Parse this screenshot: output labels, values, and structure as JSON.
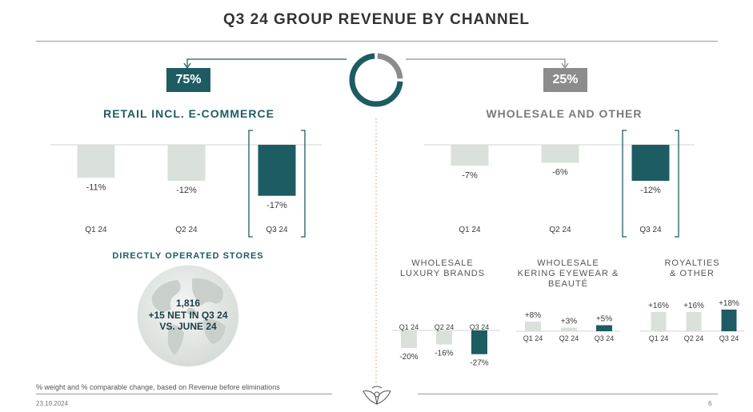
{
  "title": "Q3 24 GROUP REVENUE BY CHANNEL",
  "colors": {
    "teal": "#1d5c63",
    "grey": "#8c8c8c",
    "light": "#d9e1da",
    "text": "#3a3a3a"
  },
  "donut": {
    "retail_share": 75,
    "wholesale_share": 25
  },
  "retail": {
    "share_label": "75%",
    "heading": "RETAIL INCL. E-COMMERCE"
  },
  "wholesale": {
    "share_label": "25%",
    "heading": "WHOLESALE AND OTHER"
  },
  "stores": {
    "heading": "DIRECTLY OPERATED STORES",
    "count": "1,816",
    "line2": "+15 NET IN Q3 24",
    "line3": "VS. JUNE 24"
  },
  "footnote": "% weight and % comparable change, based on Revenue before eliminations",
  "date": "23.10.2024",
  "page_number": "6",
  "chart_data": [
    {
      "id": "retail",
      "type": "bar",
      "categories": [
        "Q1 24",
        "Q2 24",
        "Q3 24"
      ],
      "values": [
        -11,
        -12,
        -17
      ],
      "labels": [
        "-11%",
        "-12%",
        "-17%"
      ],
      "highlight": 2
    },
    {
      "id": "wholesale",
      "type": "bar",
      "categories": [
        "Q1 24",
        "Q2 24",
        "Q3 24"
      ],
      "values": [
        -7,
        -6,
        -12
      ],
      "labels": [
        "-7%",
        "-6%",
        "-12%"
      ],
      "highlight": 2
    },
    {
      "id": "lux",
      "type": "bar",
      "title": "WHOLESALE\nLUXURY BRANDS",
      "categories": [
        "Q1 24",
        "Q2 24",
        "Q3 24"
      ],
      "values": [
        -20,
        -16,
        -27
      ],
      "labels": [
        "-20%",
        "-16%",
        "-27%"
      ],
      "highlight": 2
    },
    {
      "id": "eyewear",
      "type": "bar",
      "title": "WHOLESALE\nKERING EYEWEAR &\nBEAUTÉ",
      "categories": [
        "Q1 24",
        "Q2 24",
        "Q3 24"
      ],
      "values": [
        8,
        3,
        5
      ],
      "labels": [
        "+8%",
        "+3%",
        "+5%"
      ],
      "highlight": 2
    },
    {
      "id": "royalties",
      "type": "bar",
      "title": "ROYALTIES\n& OTHER",
      "categories": [
        "Q1 24",
        "Q2 24",
        "Q3 24"
      ],
      "values": [
        16,
        16,
        18
      ],
      "labels": [
        "+16%",
        "+16%",
        "+18%"
      ],
      "highlight": 2
    }
  ]
}
